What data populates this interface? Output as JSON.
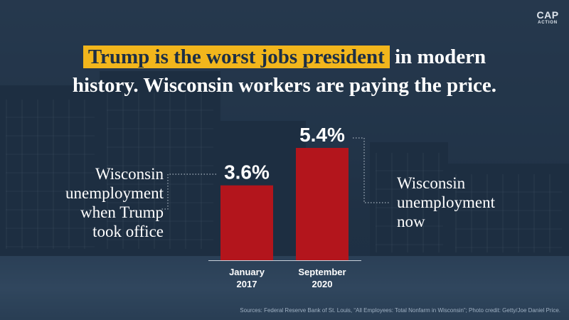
{
  "logo": {
    "line1": "CAP",
    "line2": "ACTION"
  },
  "headline": {
    "highlight": "Trump is the worst jobs president",
    "rest_line1": " in modern",
    "line2": "history. Wisconsin workers are paying the price."
  },
  "colors": {
    "bar": "#b3151c",
    "highlight": "#f2b61c",
    "background": "#2b3d52",
    "text": "#ffffff"
  },
  "chart_data": {
    "type": "bar",
    "categories": [
      "January 2017",
      "September 2020"
    ],
    "category_lines": [
      [
        "January",
        "2017"
      ],
      [
        "September",
        "2020"
      ]
    ],
    "values": [
      3.6,
      5.4
    ],
    "value_labels": [
      "3.6%",
      "5.4%"
    ],
    "ylim": [
      0,
      5.4
    ],
    "grid": false,
    "annotations": [
      {
        "lines": [
          "Wisconsin",
          "unemployment",
          "when Trump",
          "took office"
        ],
        "target": "January 2017"
      },
      {
        "lines": [
          "Wisconsin",
          "unemployment",
          "now"
        ],
        "target": "September 2020"
      }
    ]
  },
  "source": "Sources: Federal Reserve Bank of St. Louis, “All Employees: Total Nonfarm in Wisconsin”; Photo credit: Getty/Joe Daniel Price."
}
